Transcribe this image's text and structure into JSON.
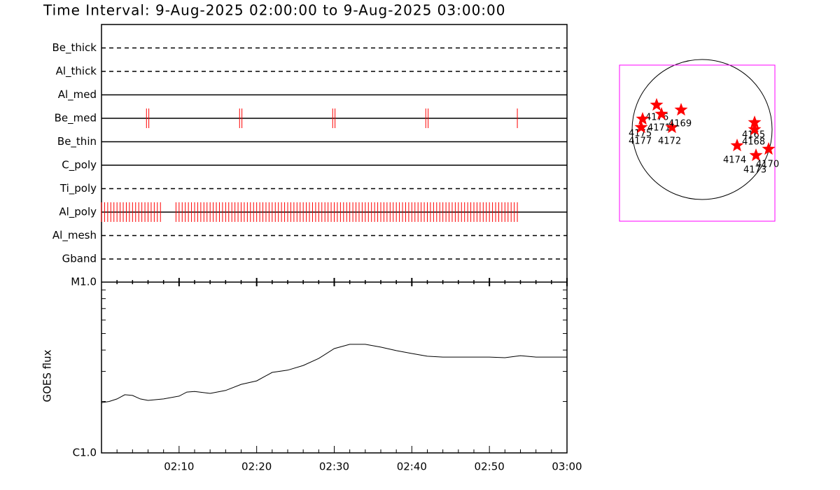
{
  "title": "Time Interval:  9-Aug-2025 02:00:00 to  9-Aug-2025 03:00:00",
  "chart_data": [
    {
      "type": "event",
      "categories": [
        "Be_thick",
        "Al_thick",
        "Al_med",
        "Be_med",
        "Be_thin",
        "C_poly",
        "Ti_poly",
        "Al_poly",
        "Al_mesh",
        "Gband"
      ],
      "line_styles": [
        "dashed",
        "dashed",
        "solid",
        "solid",
        "solid",
        "solid",
        "dashed",
        "solid",
        "dashed",
        "dashed"
      ],
      "xlim": [
        0,
        60
      ],
      "color": "#ff0000",
      "series": [
        {
          "name": "Be_med",
          "x": [
            5.8,
            6.1,
            17.8,
            18.1,
            29.8,
            30.1,
            41.8,
            42.1,
            53.6
          ]
        },
        {
          "name": "Al_poly",
          "x": [
            0,
            0.4,
            0.8,
            1.2,
            1.6,
            2,
            2.4,
            2.8,
            3.2,
            3.6,
            4,
            4.4,
            4.8,
            5.2,
            5.6,
            6,
            6.4,
            6.8,
            7.2,
            7.6,
            9.6,
            10,
            10.4,
            10.8,
            11.2,
            11.6,
            12,
            12.4,
            12.8,
            13.2,
            13.6,
            14,
            14.4,
            14.8,
            15.2,
            15.6,
            16,
            16.4,
            16.8,
            17.2,
            17.6,
            18,
            18.4,
            18.8,
            19.2,
            19.6,
            20,
            20.4,
            20.8,
            21.2,
            21.6,
            22,
            22.4,
            22.8,
            23.2,
            23.6,
            24,
            24.4,
            24.8,
            25.2,
            25.6,
            26,
            26.4,
            26.8,
            27.2,
            27.6,
            28,
            28.4,
            28.8,
            29.2,
            29.6,
            30,
            30.4,
            30.8,
            31.2,
            31.6,
            32,
            32.4,
            32.8,
            33.2,
            33.6,
            34,
            34.4,
            34.8,
            35.2,
            35.6,
            36,
            36.4,
            36.8,
            37.2,
            37.6,
            38,
            38.4,
            38.8,
            39.2,
            39.6,
            40,
            40.4,
            40.8,
            41.2,
            41.6,
            42,
            42.4,
            42.8,
            43.2,
            43.6,
            44,
            44.4,
            44.8,
            45.2,
            45.6,
            46,
            46.4,
            46.8,
            47.2,
            47.6,
            48,
            48.4,
            48.8,
            49.2,
            49.6,
            50,
            50.4,
            50.8,
            51.2,
            51.6,
            52,
            52.4,
            52.8,
            53.2,
            53.6
          ]
        }
      ]
    },
    {
      "type": "line",
      "ylabel": "GOES flux",
      "log_y": true,
      "color": "#000000",
      "xlim": [
        0,
        60
      ],
      "xticks": [
        {
          "value": 10,
          "label": "02:10"
        },
        {
          "value": 20,
          "label": "02:20"
        },
        {
          "value": 30,
          "label": "02:30"
        },
        {
          "value": 40,
          "label": "02:40"
        },
        {
          "value": 50,
          "label": "02:50"
        },
        {
          "value": 60,
          "label": "03:00"
        }
      ],
      "x_minor_ticks": [
        2,
        4,
        6,
        8,
        12,
        14,
        16,
        18,
        22,
        24,
        26,
        28,
        32,
        34,
        36,
        38,
        42,
        44,
        46,
        48,
        52,
        54,
        56,
        58
      ],
      "ylim": [
        1e-06,
        1e-05
      ],
      "yticks": [
        {
          "value": 1e-06,
          "label": "C1.0"
        },
        {
          "value": 1e-05,
          "label": "M1.0"
        }
      ],
      "y_minor_ticks": [
        2e-06,
        3e-06,
        4e-06,
        5e-06,
        6e-06,
        7e-06,
        8e-06,
        9e-06
      ],
      "x": [
        0,
        1,
        2,
        3,
        4,
        5,
        6,
        8,
        10,
        11,
        12,
        14,
        16,
        18,
        20,
        22,
        24,
        26,
        28,
        30,
        32,
        34,
        36,
        38,
        40,
        42,
        44,
        46,
        48,
        50,
        52,
        54,
        56,
        58,
        60
      ],
      "values": [
        1.97e-06,
        2e-06,
        2.07e-06,
        2.19e-06,
        2.17e-06,
        2.07e-06,
        2.03e-06,
        2.07e-06,
        2.15e-06,
        2.27e-06,
        2.29e-06,
        2.23e-06,
        2.32e-06,
        2.52e-06,
        2.64e-06,
        2.96e-06,
        3.05e-06,
        3.25e-06,
        3.57e-06,
        4.08e-06,
        4.32e-06,
        4.32e-06,
        4.16e-06,
        3.97e-06,
        3.82e-06,
        3.68e-06,
        3.64e-06,
        3.64e-06,
        3.64e-06,
        3.64e-06,
        3.61e-06,
        3.71e-06,
        3.64e-06,
        3.64e-06,
        3.64e-06
      ]
    },
    {
      "type": "map",
      "color": "#ff0000",
      "frame_color": "#ff00ff",
      "labels": [
        "4176",
        "4175",
        "4177",
        "4171",
        "4172",
        "4169",
        "4165",
        "4168",
        "4174",
        "4173",
        "4170"
      ]
    }
  ]
}
